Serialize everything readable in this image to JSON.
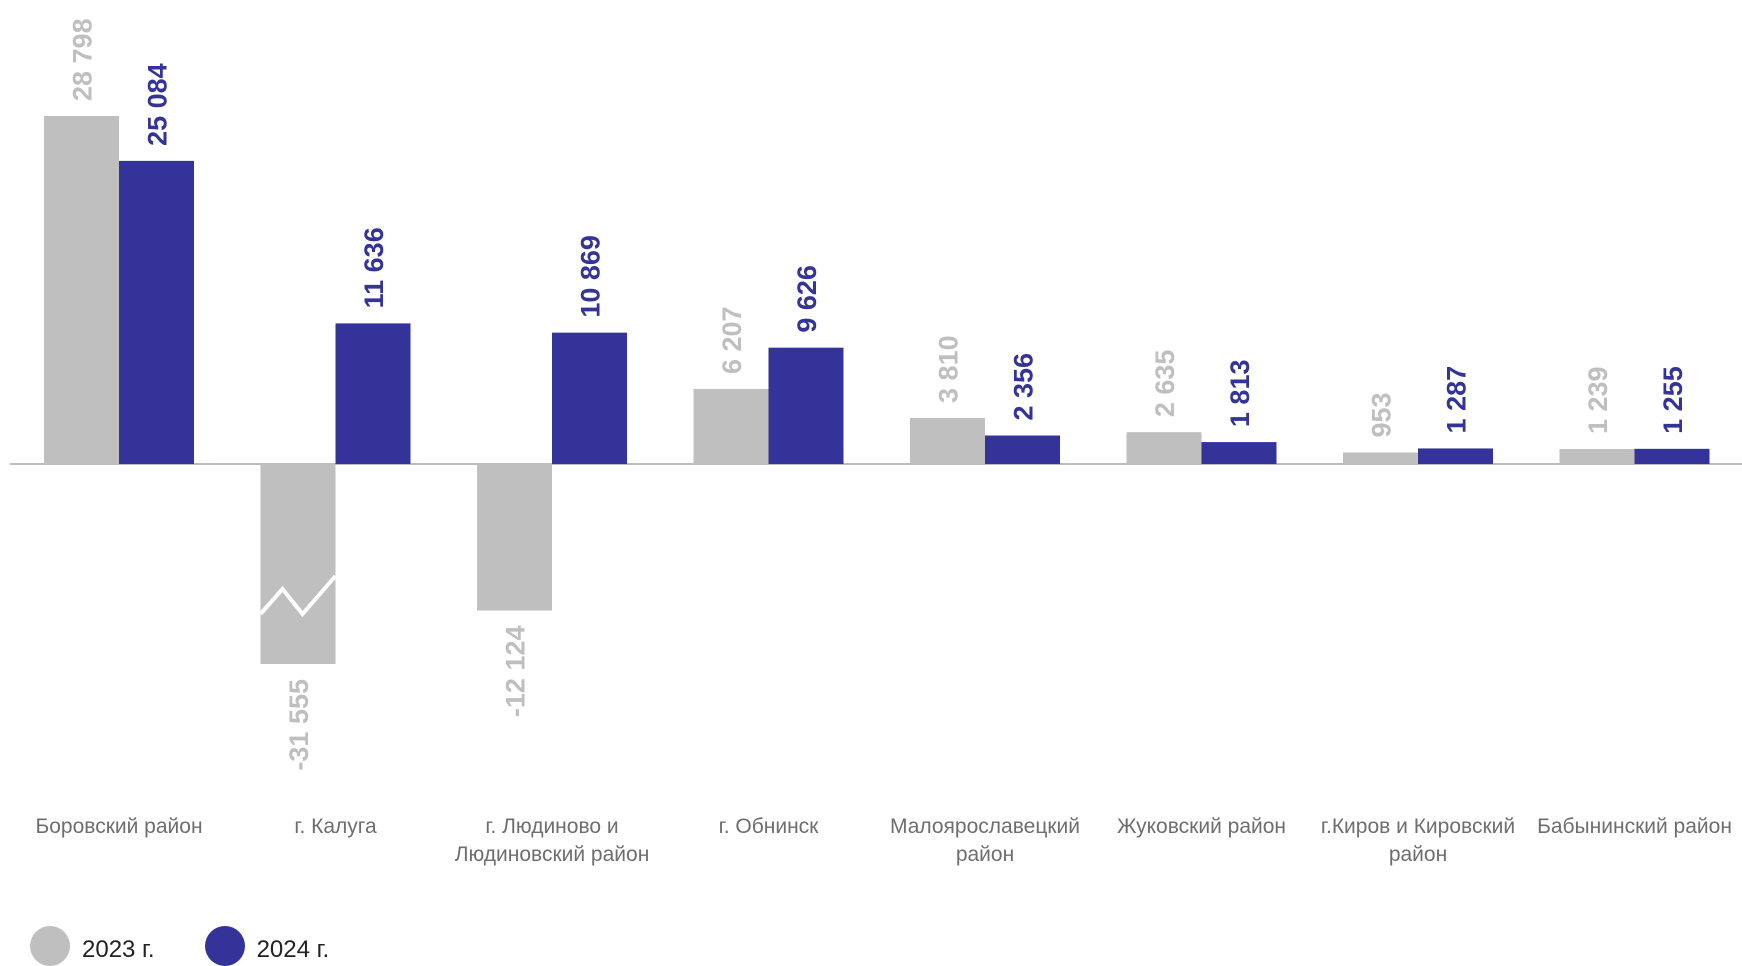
{
  "chart_data": {
    "type": "bar",
    "categories": [
      "Боровский район",
      "г. Калуга",
      "г. Людиново и Людиновский район",
      "г. Обнинск",
      "Малоярославецкий район",
      "Жуковский район",
      "г.Киров и Кировский район",
      "Бабынинский район"
    ],
    "category_lines": [
      [
        "Боровский район"
      ],
      [
        "г. Калуга"
      ],
      [
        "г. Людиново и",
        "Людиновский район"
      ],
      [
        "г. Обнинск"
      ],
      [
        "Малоярославецкий",
        "район"
      ],
      [
        "Жуковский район"
      ],
      [
        "г.Киров и Кировский",
        "район"
      ],
      [
        "Бабынинский район"
      ]
    ],
    "series": [
      {
        "name": "2023 г.",
        "color": "#bfbfbf",
        "values": [
          28798,
          -31555,
          -12124,
          6207,
          3810,
          2635,
          953,
          1239
        ],
        "labels": [
          "28 798",
          "-31 555",
          "-12 124",
          "6 207",
          "3 810",
          "2 635",
          "953",
          "1 239"
        ]
      },
      {
        "name": "2024 г.",
        "color": "#333399",
        "values": [
          25084,
          11636,
          10869,
          9626,
          2356,
          1813,
          1287,
          1255
        ],
        "labels": [
          "25 084",
          "11 636",
          "10 869",
          "9 626",
          "2 356",
          "1 813",
          "1 287",
          "1 255"
        ]
      }
    ],
    "axis_break": {
      "series": 0,
      "category": 1
    },
    "legend_position": "bottom-left"
  }
}
